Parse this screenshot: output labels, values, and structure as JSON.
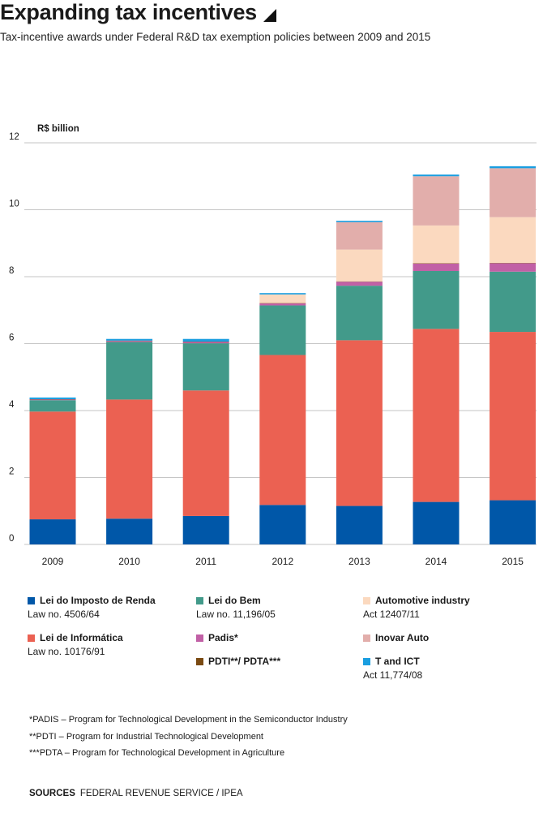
{
  "header": {
    "title": "Expanding tax incentives",
    "subtitle": "Tax-incentive awards under Federal R&D tax exemption policies between 2009 and 2015"
  },
  "chart_data": {
    "type": "bar",
    "stacked": true,
    "title": "Expanding tax incentives",
    "subtitle": "Tax-incentive awards under Federal R&D tax exemption policies between 2009 and 2015",
    "ylabel": "R$ billion",
    "xlabel": "",
    "ylim": [
      0,
      12
    ],
    "yticks": [
      0,
      2,
      4,
      6,
      8,
      10,
      12
    ],
    "grid": true,
    "legend_position": "bottom",
    "categories": [
      "2009",
      "2010",
      "2011",
      "2012",
      "2013",
      "2014",
      "2015"
    ],
    "series": [
      {
        "name": "Lei do Imposto de Renda",
        "color": "#0057a8",
        "values": [
          0.75,
          0.77,
          0.85,
          1.18,
          1.15,
          1.27,
          1.32
        ]
      },
      {
        "name": "Lei de Informática",
        "color": "#eb6152",
        "values": [
          3.22,
          3.56,
          3.75,
          4.48,
          4.95,
          5.17,
          5.03
        ]
      },
      {
        "name": "Lei do Bem",
        "color": "#429a8a",
        "values": [
          0.34,
          1.72,
          1.41,
          1.48,
          1.63,
          1.73,
          1.8
        ]
      },
      {
        "name": "Padis*",
        "color": "#c160a6",
        "values": [
          0.02,
          0.03,
          0.04,
          0.06,
          0.12,
          0.22,
          0.25
        ]
      },
      {
        "name": "PDTI**/ PDTA***",
        "color": "#7a4a12",
        "values": [
          0.01,
          0.01,
          0.01,
          0.01,
          0.01,
          0.01,
          0.01
        ]
      },
      {
        "name": "Automotive industry",
        "color": "#fbd9bf",
        "values": [
          0,
          0,
          0,
          0.26,
          0.95,
          1.13,
          1.37
        ]
      },
      {
        "name": "Inovar Auto",
        "color": "#e2aeab",
        "values": [
          0,
          0,
          0,
          0,
          0.82,
          1.47,
          1.46
        ]
      },
      {
        "name": "T and ICT",
        "color": "#1a9ee0",
        "values": [
          0.05,
          0.05,
          0.08,
          0.04,
          0.04,
          0.05,
          0.06
        ]
      }
    ]
  },
  "legend": {
    "items": [
      {
        "name": "Lei do Imposto de Renda",
        "sub": "Law no. 4506/64",
        "color": "#0057a8"
      },
      {
        "name": "Lei do Bem",
        "sub": "Law no. 11,196/05",
        "color": "#429a8a"
      },
      {
        "name": "Automotive industry",
        "sub": "Act 12407/11",
        "color": "#fbd9bf"
      },
      {
        "name": "Lei de Informática",
        "sub": "Law no. 10176/91",
        "color": "#eb6152"
      },
      {
        "name": "Padis*",
        "sub": "",
        "color": "#c160a6"
      },
      {
        "name": "Inovar Auto",
        "sub": "",
        "color": "#e2aeab"
      },
      {
        "name": "PDTI**/ PDTA***",
        "sub": "",
        "color": "#7a4a12"
      },
      {
        "name": "T and ICT",
        "sub": "Act 11,774/08",
        "color": "#1a9ee0"
      }
    ]
  },
  "notes": [
    "*PADIS – Program for Technological Development in the Semiconductor Industry",
    "**PDTI – Program for Industrial Technological Development",
    "***PDTA – Program for Technological Development in Agriculture"
  ],
  "sources": {
    "label": "SOURCES",
    "text": "FEDERAL REVENUE SERVICE / IPEA"
  },
  "colors": {
    "grid": "#b3b3b3",
    "axis_text": "#1a1a1a"
  }
}
